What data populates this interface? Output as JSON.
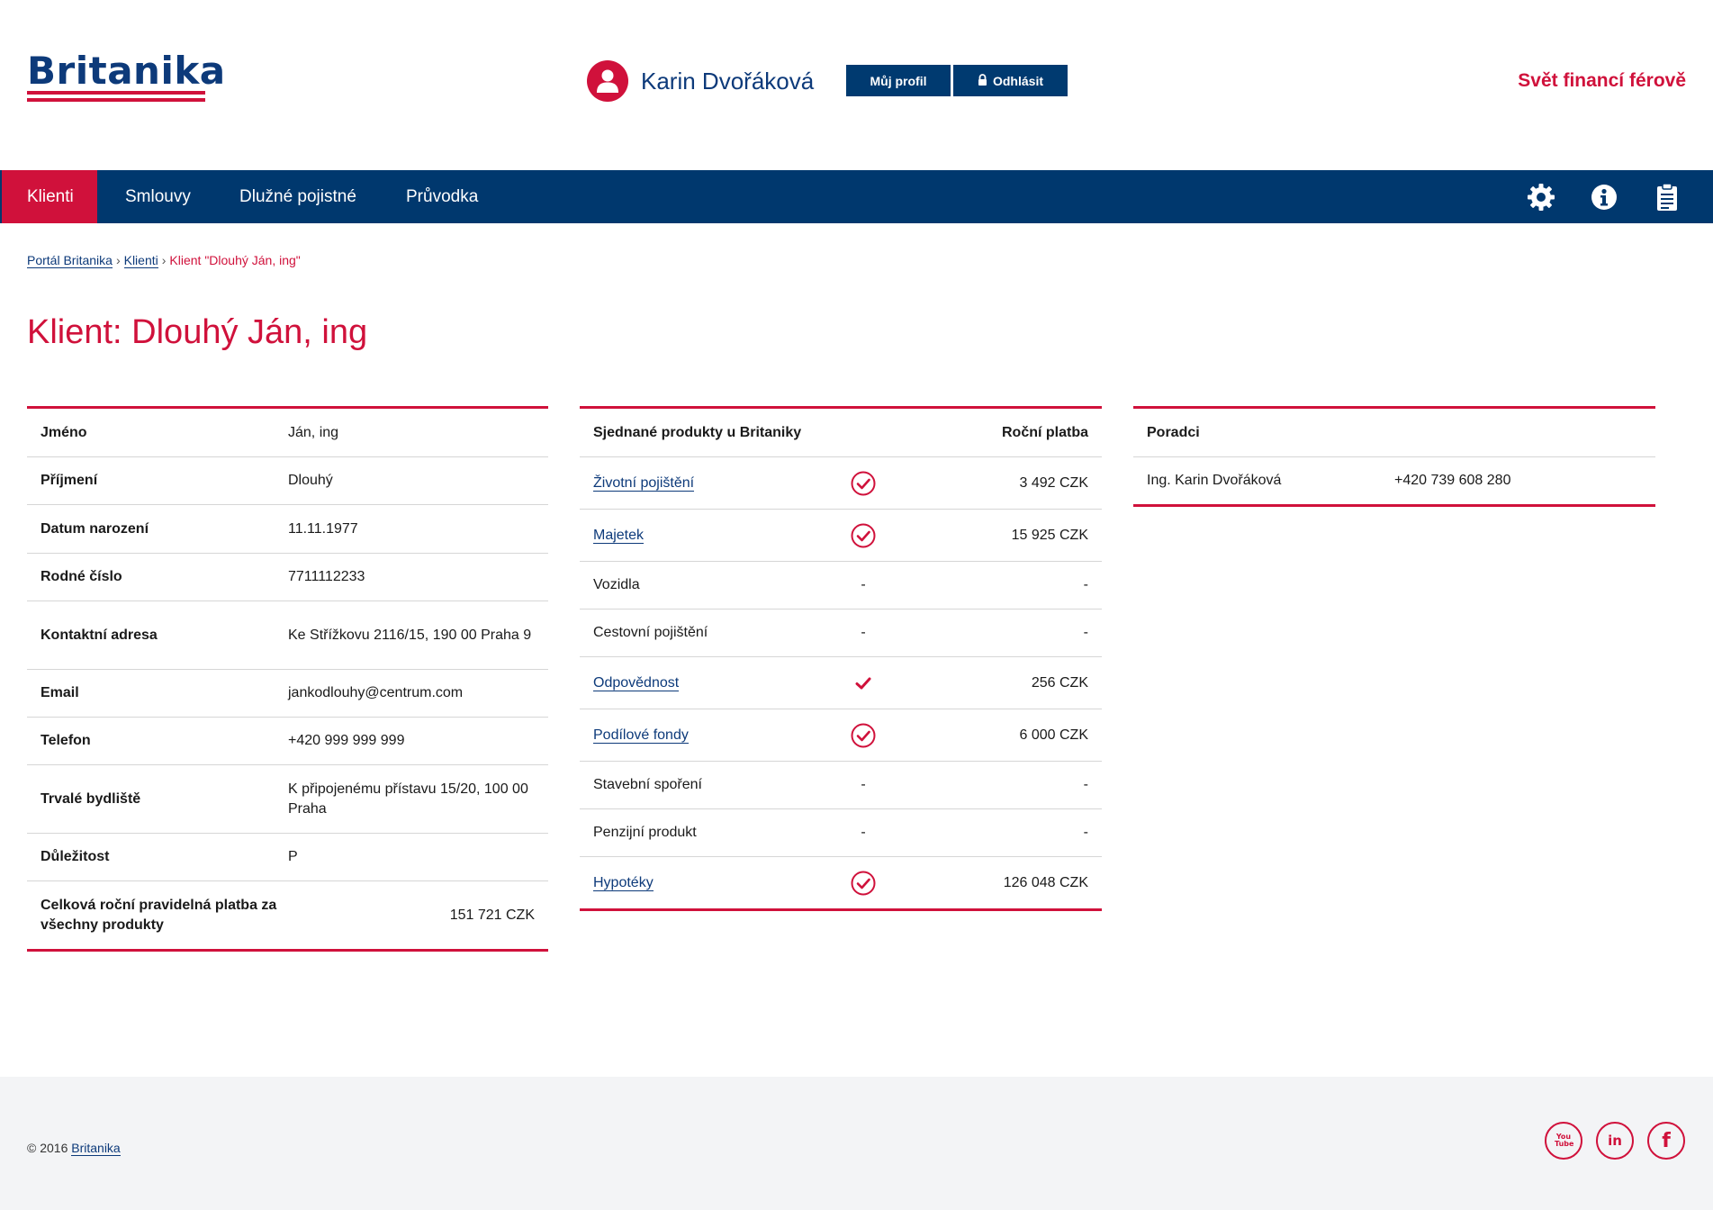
{
  "header": {
    "logo_text": "Britanika",
    "user_name": "Karin Dvořáková",
    "profile_label": "Můj profil",
    "logout_label": "Odhlásit",
    "slogan": "Svět financí férově"
  },
  "nav": {
    "items": [
      {
        "label": "Klienti",
        "active": true
      },
      {
        "label": "Smlouvy",
        "active": false
      },
      {
        "label": "Dlužné pojistné",
        "active": false
      },
      {
        "label": "Průvodka",
        "active": false
      }
    ],
    "icons": [
      "gear-icon",
      "info-icon",
      "clipboard-icon"
    ]
  },
  "breadcrumb": {
    "home": "Portál Britanika",
    "clients": "Klienti",
    "current": "Klient \"Dlouhý Ján, ing\"",
    "separator": "›"
  },
  "page_title": "Klient: Dlouhý Ján, ing",
  "client": {
    "rows": [
      {
        "label": "Jméno",
        "value": "Ján, ing"
      },
      {
        "label": "Příjmení",
        "value": "Dlouhý"
      },
      {
        "label": "Datum narození",
        "value": "11.11.1977"
      },
      {
        "label": "Rodné číslo",
        "value": "7711112233"
      },
      {
        "label": "Kontaktní adresa",
        "value": "Ke Střížkovu 2116/15, 190 00 Praha 9"
      },
      {
        "label": "Email",
        "value": "jankodlouhy@centrum.com"
      },
      {
        "label": "Telefon",
        "value": "+420 999 999 999"
      },
      {
        "label": "Trvalé bydliště",
        "value": "K připojenému přístavu 15/20, 100 00 Praha"
      },
      {
        "label": "Důležitost",
        "value": "P"
      }
    ],
    "total_label": "Celková roční pravidelná platba za všechny produkty",
    "total_value": "151 721 CZK"
  },
  "products": {
    "header_name": "Sjednané produkty u Britaniky",
    "header_payment": "Roční platba",
    "rows": [
      {
        "name": "Životní pojištění",
        "link": true,
        "status": "circle-check",
        "payment": "3 492 CZK"
      },
      {
        "name": "Majetek",
        "link": true,
        "status": "circle-check",
        "payment": "15 925 CZK"
      },
      {
        "name": "Vozidla",
        "link": false,
        "status": "-",
        "payment": "-"
      },
      {
        "name": "Cestovní pojištění",
        "link": false,
        "status": "-",
        "payment": "-"
      },
      {
        "name": "Odpovědnost",
        "link": true,
        "status": "check",
        "payment": "256 CZK"
      },
      {
        "name": "Podílové fondy",
        "link": true,
        "status": "circle-check",
        "payment": "6 000 CZK"
      },
      {
        "name": "Stavební spoření",
        "link": false,
        "status": "-",
        "payment": "-"
      },
      {
        "name": "Penzijní produkt",
        "link": false,
        "status": "-",
        "payment": "-"
      },
      {
        "name": "Hypotéky",
        "link": true,
        "status": "circle-check",
        "payment": "126 048 CZK"
      }
    ]
  },
  "advisors": {
    "header": "Poradci",
    "rows": [
      {
        "name": "Ing. Karin Dvořáková",
        "phone": "+420 739 608 280"
      }
    ]
  },
  "footer": {
    "copyright_prefix": "© 2016",
    "copyright_link": "Britanika",
    "social": [
      {
        "name": "youtube-icon",
        "glyph": "You Tube"
      },
      {
        "name": "linkedin-icon",
        "glyph": "in"
      },
      {
        "name": "facebook-icon",
        "glyph": "f"
      }
    ]
  },
  "colors": {
    "brand_red": "#d0113b",
    "brand_blue": "#00386e"
  }
}
